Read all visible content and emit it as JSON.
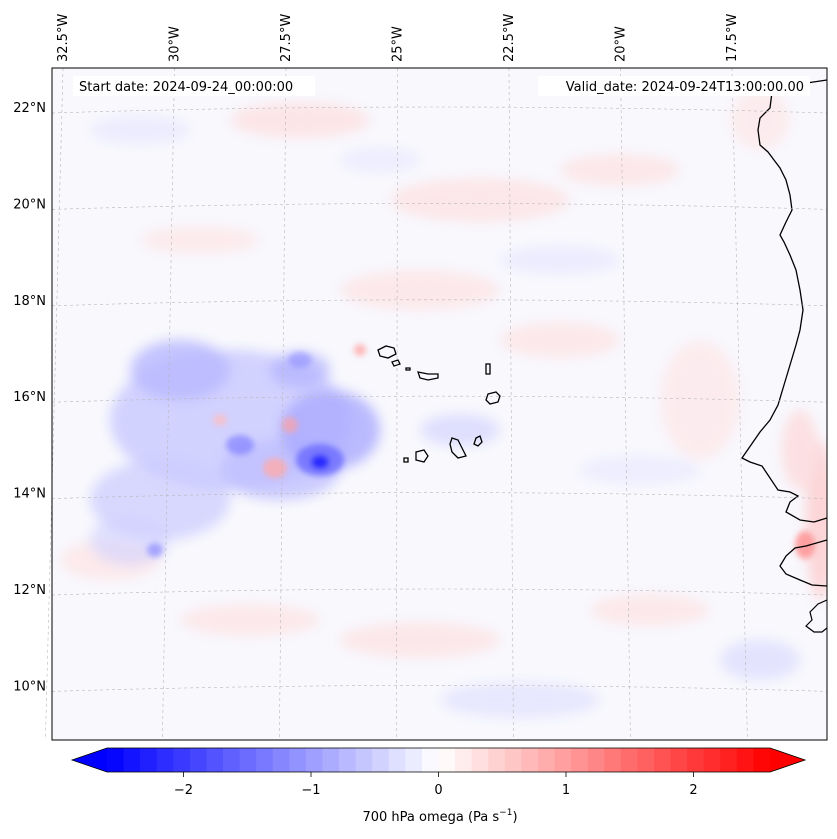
{
  "map": {
    "field": "700 hPa omega",
    "units": "Pa s⁻¹",
    "region": {
      "lon": [
        -32.6,
        -15.2
      ],
      "lat": [
        8.8,
        22.8
      ]
    },
    "start_date_label": "Start date: 2024-09-24_00:00:00",
    "valid_date_label": "Valid_date: 2024-09-24T13:00:00.00",
    "lon_ticks": [
      "32.5°W",
      "30°W",
      "27.5°W",
      "25°W",
      "22.5°W",
      "20°W",
      "17.5°W"
    ],
    "lon_values": [
      -32.5,
      -30,
      -27.5,
      -25,
      -22.5,
      -20,
      -17.5
    ],
    "lat_ticks": [
      "22°N",
      "20°N",
      "18°N",
      "16°N",
      "14°N",
      "12°N",
      "10°N"
    ],
    "lat_values": [
      22,
      20,
      18,
      16,
      14,
      12,
      10
    ],
    "gridlines": true,
    "features": [
      "West African coastline",
      "Cape Verde islands"
    ]
  },
  "colorbar": {
    "label_main": "700 hPa omega (Pa s",
    "label_sup": "−1",
    "label_close": ")",
    "ticks": [
      "−2",
      "−1",
      "0",
      "1",
      "2"
    ],
    "tick_values": [
      -2,
      -1,
      0,
      1,
      2
    ],
    "range": [
      -2.6,
      2.6
    ],
    "extend": "both",
    "colormap": "bwr",
    "colors": {
      "negative": "#0000ff",
      "zero": "#ffffff",
      "positive": "#ff0000"
    }
  }
}
